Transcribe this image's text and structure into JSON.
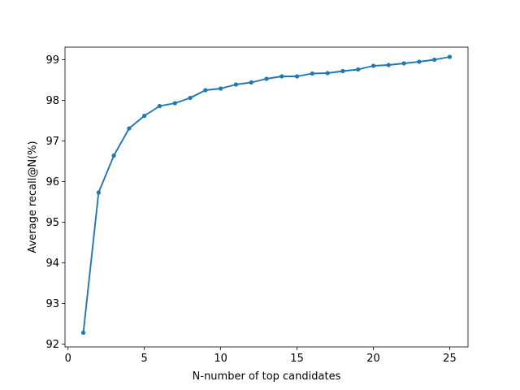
{
  "chart_data": {
    "type": "line",
    "title": "",
    "xlabel": "N-number of top candidates",
    "ylabel": "Average recall@N(%)",
    "xlim": [
      -0.2,
      26.2
    ],
    "ylim": [
      91.93,
      99.31
    ],
    "xticks": [
      0,
      5,
      10,
      15,
      20,
      25
    ],
    "xtick_labels": [
      "0",
      "5",
      "10",
      "15",
      "20",
      "25"
    ],
    "yticks": [
      92,
      93,
      94,
      95,
      96,
      97,
      98,
      99
    ],
    "ytick_labels": [
      "92",
      "93",
      "94",
      "95",
      "96",
      "97",
      "98",
      "99"
    ],
    "grid": false,
    "series": [
      {
        "color": "#1f77b4",
        "marker": "circle",
        "x": [
          1,
          2,
          3,
          4,
          5,
          6,
          7,
          8,
          9,
          10,
          11,
          12,
          13,
          14,
          15,
          16,
          17,
          18,
          19,
          20,
          21,
          22,
          23,
          24,
          25
        ],
        "y": [
          92.28,
          95.73,
          96.64,
          97.31,
          97.62,
          97.86,
          97.93,
          98.06,
          98.25,
          98.29,
          98.39,
          98.44,
          98.53,
          98.59,
          98.59,
          98.66,
          98.67,
          98.72,
          98.76,
          98.85,
          98.87,
          98.91,
          98.95,
          99.0,
          99.07
        ]
      }
    ]
  }
}
